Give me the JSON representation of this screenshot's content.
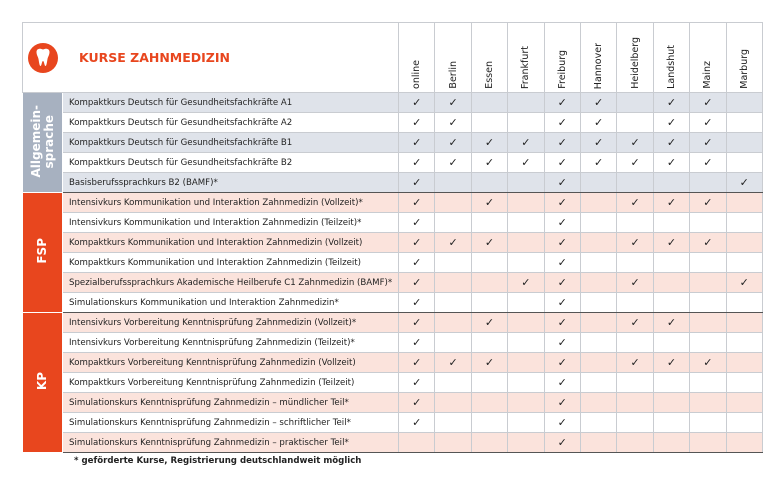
{
  "header": {
    "title": "KURSE ZAHNMEDIZIN",
    "locations": [
      "online",
      "Berlin",
      "Essen",
      "Frankfurt",
      "Freiburg",
      "Hannover",
      "Heidelberg",
      "Landshut",
      "Mainz",
      "Marburg"
    ]
  },
  "groups": [
    {
      "label": "Allgemein-\nsprache",
      "color": "#a7b1c0",
      "shade": "#dfe3ea",
      "rows": [
        {
          "course": "Kompaktkurs Deutsch für Gesundheitsfachkräfte A1",
          "marks": [
            "✓",
            "✓",
            null,
            null,
            "✓",
            "✓",
            null,
            "✓",
            "✓",
            null
          ]
        },
        {
          "course": "Kompaktkurs Deutsch für Gesundheitsfachkräfte A2",
          "marks": [
            "✓",
            "✓",
            null,
            null,
            "✓",
            "✓",
            null,
            "✓",
            "✓",
            null
          ]
        },
        {
          "course": "Kompaktkurs Deutsch für Gesundheitsfachkräfte B1",
          "marks": [
            "✓",
            "✓",
            "✓",
            "✓",
            "✓",
            "✓",
            "✓",
            "✓",
            "✓",
            null
          ]
        },
        {
          "course": "Kompaktkurs Deutsch für Gesundheitsfachkräfte B2",
          "marks": [
            "✓",
            "✓",
            "✓",
            "✓",
            "✓",
            "✓",
            "✓",
            "✓",
            "✓",
            null
          ]
        },
        {
          "course": "Basisberufssprachkurs B2 (BAMF)*",
          "marks": [
            "✓",
            null,
            null,
            null,
            "✓",
            null,
            null,
            null,
            null,
            "✓"
          ]
        }
      ]
    },
    {
      "label": "FSP",
      "color": "#e8461e",
      "shade": "#fbe3dc",
      "rows": [
        {
          "course": "Intensivkurs Kommunikation und Interaktion Zahnmedizin (Vollzeit)*",
          "marks": [
            "✓",
            null,
            "✓",
            null,
            "✓",
            null,
            "✓",
            "✓",
            "✓",
            null
          ]
        },
        {
          "course": "Intensivkurs Kommunikation und Interaktion Zahnmedizin (Teilzeit)*",
          "marks": [
            "✓",
            null,
            null,
            null,
            "✓",
            null,
            null,
            null,
            null,
            null
          ]
        },
        {
          "course": "Kompaktkurs Kommunikation und Interaktion Zahnmedizin (Vollzeit)",
          "marks": [
            "✓",
            "✓",
            "✓",
            null,
            "✓",
            null,
            "✓",
            "✓",
            "✓",
            null
          ]
        },
        {
          "course": "Kompaktkurs Kommunikation und Interaktion Zahnmedizin (Teilzeit)",
          "marks": [
            "✓",
            null,
            null,
            null,
            "✓",
            null,
            null,
            null,
            null,
            null
          ]
        },
        {
          "course": "Spezialberufssprachkurs Akademische Heilberufe C1 Zahnmedizin (BAMF)*",
          "marks": [
            "✓",
            null,
            null,
            "✓",
            "✓",
            null,
            "✓",
            null,
            null,
            "✓"
          ]
        },
        {
          "course": "Simulationskurs Kommunikation und Interaktion Zahnmedizin*",
          "marks": [
            "✓",
            null,
            null,
            null,
            "✓",
            null,
            null,
            null,
            null,
            null
          ]
        }
      ]
    },
    {
      "label": "KP",
      "color": "#e8461e",
      "shade": "#fbe3dc",
      "rows": [
        {
          "course": "Intensivkurs Vorbereitung Kenntnisprüfung Zahnmedizin (Vollzeit)*",
          "marks": [
            "✓",
            null,
            "✓",
            null,
            "✓",
            null,
            "✓",
            "✓",
            null,
            null
          ]
        },
        {
          "course": "Intensivkurs Vorbereitung Kenntnisprüfung Zahnmedizin (Teilzeit)*",
          "marks": [
            "✓",
            null,
            null,
            null,
            "✓",
            null,
            null,
            null,
            null,
            null
          ]
        },
        {
          "course": "Kompaktkurs Vorbereitung Kenntnisprüfung Zahnmedizin (Vollzeit)",
          "marks": [
            "✓",
            "✓",
            "✓",
            null,
            "✓",
            null,
            "✓",
            "✓",
            "✓",
            null
          ]
        },
        {
          "course": "Kompaktkurs Vorbereitung Kenntnisprüfung Zahnmedizin (Teilzeit)",
          "marks": [
            "✓",
            null,
            null,
            null,
            "✓",
            null,
            null,
            null,
            null,
            null
          ]
        },
        {
          "course": "Simulationskurs Kenntnisprüfung Zahnmedizin – mündlicher Teil*",
          "marks": [
            "✓",
            null,
            null,
            null,
            "✓",
            null,
            null,
            null,
            null,
            null
          ]
        },
        {
          "course": "Simulationskurs Kenntnisprüfung Zahnmedizin – schriftlicher Teil*",
          "marks": [
            "✓",
            null,
            null,
            null,
            "✓",
            null,
            null,
            null,
            null,
            null
          ]
        },
        {
          "course": "Simulationskurs Kenntnisprüfung Zahnmedizin – praktischer Teil*",
          "marks": [
            null,
            null,
            null,
            null,
            "✓",
            null,
            null,
            null,
            null,
            null
          ]
        }
      ]
    }
  ],
  "footnote": "* geförderte Kurse, Registrierung deutschlandweit möglich"
}
